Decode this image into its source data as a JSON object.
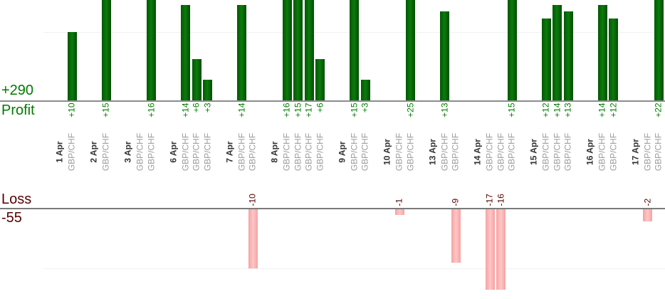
{
  "chart_data": {
    "type": "bar",
    "orientation": "vertical",
    "legend": "none",
    "grid": "horizontal, step 10, very light",
    "profit_section": {
      "label": "Profit",
      "total_label": "+290",
      "total": 290,
      "gridline_value": 10,
      "bar_color": "#0a6d0a",
      "text_color": "#007b00",
      "note": "bars grow upward from axis; tall bars clipped at top edge of view"
    },
    "loss_section": {
      "label": "Loss",
      "total_label": "-55",
      "total": -55,
      "gridline_value": -10,
      "bar_color": "#ffb3b3",
      "text_color": "#550000",
      "note": "bars grow downward from axis; long bars clipped at bottom of plot area"
    },
    "x_groups": [
      {
        "date": "1 Apr",
        "trades": [
          {
            "pair": "GBP/CHF",
            "value": 10,
            "label": "+10"
          }
        ]
      },
      {
        "date": "2 Apr",
        "trades": [
          {
            "pair": "GBP/CHF",
            "value": 15,
            "label": "+15"
          }
        ]
      },
      {
        "date": "3 Apr",
        "trades": [
          {
            "pair": "GBP/CHF",
            "value": 0,
            "label": ""
          },
          {
            "pair": "GBP/CHF",
            "value": 16,
            "label": "+16"
          }
        ]
      },
      {
        "date": "6 Apr",
        "trades": [
          {
            "pair": "GBP/CHF",
            "value": 14,
            "label": "+14"
          },
          {
            "pair": "GBP/CHF",
            "value": 6,
            "label": "+6"
          },
          {
            "pair": "GBP/CHF",
            "value": 3,
            "label": "+3"
          }
        ]
      },
      {
        "date": "7 Apr",
        "trades": [
          {
            "pair": "GBP/CHF",
            "value": 14,
            "label": "+14"
          },
          {
            "pair": "GBP/CHF",
            "value": -10,
            "label": "-10"
          }
        ]
      },
      {
        "date": "8 Apr",
        "trades": [
          {
            "pair": "GBP/CHF",
            "value": 16,
            "label": "+16"
          },
          {
            "pair": "GBP/CHF",
            "value": 15,
            "label": "+15"
          },
          {
            "pair": "GBP/CHF",
            "value": 17,
            "label": "+17"
          },
          {
            "pair": "GBP/CHF",
            "value": 6,
            "label": "+6"
          }
        ]
      },
      {
        "date": "9 Apr",
        "trades": [
          {
            "pair": "GBP/CHF",
            "value": 15,
            "label": "+15"
          },
          {
            "pair": "GBP/CHF",
            "value": 3,
            "label": "+3"
          }
        ]
      },
      {
        "date": "10 Apr",
        "trades": [
          {
            "pair": "GBP/CHF",
            "value": -1,
            "label": "-1"
          },
          {
            "pair": "GBP/CHF",
            "value": 25,
            "label": "+25"
          }
        ]
      },
      {
        "date": "13 Apr",
        "trades": [
          {
            "pair": "GBP/CHF",
            "value": 13,
            "label": "+13"
          },
          {
            "pair": "GBP/CHF",
            "value": -9,
            "label": "-9"
          }
        ]
      },
      {
        "date": "14 Apr",
        "trades": [
          {
            "pair": "GBP/CHF",
            "value": -17,
            "label": "-17"
          },
          {
            "pair": "GBP/CHF",
            "value": -16,
            "label": "-16"
          },
          {
            "pair": "GBP/CHF",
            "value": 15,
            "label": "+15"
          }
        ]
      },
      {
        "date": "15 Apr",
        "trades": [
          {
            "pair": "GBP/CHF",
            "value": 12,
            "label": "+12"
          },
          {
            "pair": "GBP/CHF",
            "value": 14,
            "label": "+14"
          },
          {
            "pair": "GBP/CHF",
            "value": 13,
            "label": "+13"
          }
        ]
      },
      {
        "date": "16 Apr",
        "trades": [
          {
            "pair": "GBP/CHF",
            "value": 14,
            "label": "+14"
          },
          {
            "pair": "GBP/CHF",
            "value": 12,
            "label": "+12"
          }
        ]
      },
      {
        "date": "17 Apr",
        "trades": [
          {
            "pair": "GBP/CHF",
            "value": -2,
            "label": "-2"
          },
          {
            "pair": "GBP/CHF",
            "value": 22,
            "label": "+22"
          }
        ]
      }
    ]
  }
}
